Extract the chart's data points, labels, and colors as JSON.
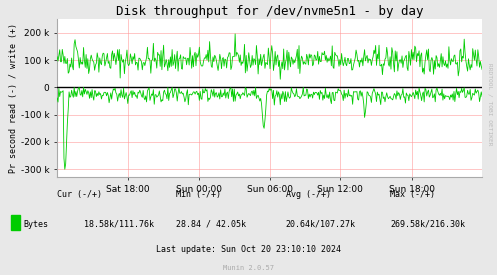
{
  "title": "Disk throughput for /dev/nvme5n1 - by day",
  "ylabel": "Pr second read (-) / write (+)",
  "xlabel_ticks": [
    "Sat 18:00",
    "Sun 00:00",
    "Sun 06:00",
    "Sun 12:00",
    "Sun 18:00"
  ],
  "ytick_vals": [
    -300000,
    -200000,
    -100000,
    0,
    100000,
    200000
  ],
  "ytick_labels": [
    "-300 k",
    "-200 k",
    "-100 k",
    "0",
    "100 k",
    "200 k"
  ],
  "ylim": [
    -330000,
    250000
  ],
  "xlim": [
    0,
    500
  ],
  "bg_color": "#e8e8e8",
  "plot_bg_color": "#ffffff",
  "grid_color": "#ff9999",
  "line_color": "#00cc00",
  "zero_line_color": "#000000",
  "legend_label": "Bytes",
  "legend_color": "#00cc00",
  "cur_text": "Cur (-/+)",
  "cur_val": "18.58k/111.76k",
  "min_text": "Min (-/+)",
  "min_val": "28.84 / 42.05k",
  "avg_text": "Avg (-/+)",
  "avg_val": "20.64k/107.27k",
  "max_text": "Max (-/+)",
  "max_val": "269.58k/216.30k",
  "last_update": "Last update: Sun Oct 20 23:10:10 2024",
  "munin_version": "Munin 2.0.57",
  "rrdtool_text": "RRDTOOL / TOBI OETIKER",
  "title_fontsize": 9,
  "axis_fontsize": 6.5,
  "bottom_fontsize": 6.0,
  "munin_fontsize": 5.0
}
